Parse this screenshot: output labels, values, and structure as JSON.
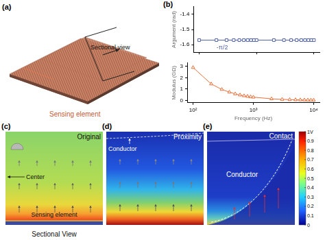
{
  "chart_data": [
    {
      "type": "line",
      "x_label": "Frequency (Hz)",
      "y_label": "Argument (rad)",
      "x": [
        100,
        200,
        300,
        400,
        500,
        600,
        700,
        800,
        900,
        1000,
        2000,
        3000,
        4000,
        5000,
        6000,
        7000,
        8000,
        9000,
        10000
      ],
      "values": [
        -1.57,
        -1.57,
        -1.57,
        -1.57,
        -1.57,
        -1.57,
        -1.57,
        -1.57,
        -1.57,
        -1.57,
        -1.57,
        -1.57,
        -1.57,
        -1.57,
        -1.57,
        -1.57,
        -1.57,
        -1.57,
        -1.57
      ],
      "color": "#5566aa",
      "marker": "square",
      "line_style": "solid",
      "log": "x",
      "grid": false,
      "tick_labels": "y",
      "xlim": [
        80,
        12500
      ],
      "xticks": [
        {
          "value": 100,
          "label": "10²"
        },
        {
          "value": 1000,
          "label": "10³"
        },
        {
          "value": 10000,
          "label": "10⁴"
        }
      ],
      "ylim": [
        -1.65,
        -1.35
      ],
      "yticks": [
        -1.6,
        -1.5,
        -1.4
      ],
      "annotation": "-π/2"
    },
    {
      "type": "line",
      "x_label": "Frequency (Hz)",
      "y_label": "Modulus (GΩ)",
      "x": [
        100,
        200,
        300,
        400,
        500,
        600,
        700,
        800,
        900,
        1000,
        2000,
        3000,
        4000,
        5000,
        6000,
        7000,
        8000,
        9000,
        10000
      ],
      "values": [
        2.9,
        1.45,
        0.97,
        0.73,
        0.58,
        0.48,
        0.41,
        0.36,
        0.32,
        0.29,
        0.145,
        0.097,
        0.073,
        0.058,
        0.048,
        0.041,
        0.036,
        0.032,
        0.029
      ],
      "color": "#e8703a",
      "marker": "triangle",
      "line_style": "solid",
      "log": "x",
      "grid": false,
      "xlim": [
        80,
        12500
      ],
      "xticks": [
        {
          "value": 100,
          "label": "10²"
        },
        {
          "value": 1000,
          "label": "10³"
        },
        {
          "value": 10000,
          "label": "10⁴"
        }
      ],
      "ylim": [
        -0.2,
        3.3
      ],
      "yticks": [
        0,
        1,
        2,
        3
      ]
    }
  ],
  "panels": {
    "a": {
      "label": "(a)",
      "texts": [
        "Sectional view",
        "Sensing element"
      ]
    },
    "b": {
      "label": "(b)"
    },
    "c": {
      "label": "(c)",
      "title": "Original",
      "texts": [
        "Center",
        "Sensing element"
      ],
      "caption": "Sectional View"
    },
    "d": {
      "label": "(d)",
      "title": "Proximity",
      "texts": [
        "Conductor"
      ]
    },
    "e": {
      "label": "(e)",
      "title": "Contact",
      "texts": [
        "Conductor"
      ]
    }
  },
  "colorbar": {
    "range": [
      0,
      1
    ],
    "ticks": [
      0,
      0.1,
      0.2,
      0.3,
      0.4,
      0.5,
      0.6,
      0.7,
      0.8,
      0.9,
      {
        "value": 1,
        "label": "1V"
      }
    ]
  }
}
